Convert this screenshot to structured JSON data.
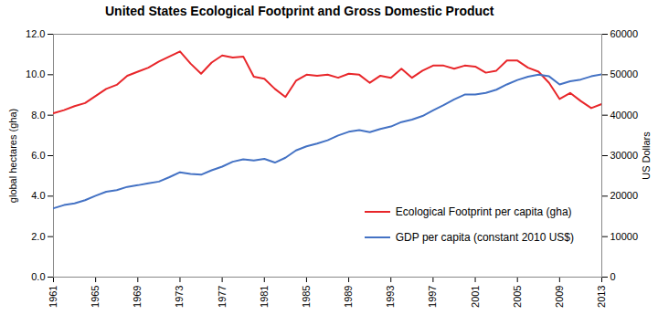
{
  "chart_data": {
    "type": "line",
    "title": "United States Ecological Footprint and Gross Domestic Product",
    "x": [
      1961,
      1962,
      1963,
      1964,
      1965,
      1966,
      1967,
      1968,
      1969,
      1970,
      1971,
      1972,
      1973,
      1974,
      1975,
      1976,
      1977,
      1978,
      1979,
      1980,
      1981,
      1982,
      1983,
      1984,
      1985,
      1986,
      1987,
      1988,
      1989,
      1990,
      1991,
      1992,
      1993,
      1994,
      1995,
      1996,
      1997,
      1998,
      1999,
      2000,
      2001,
      2002,
      2003,
      2004,
      2005,
      2006,
      2007,
      2008,
      2009,
      2010,
      2011,
      2012,
      2013
    ],
    "xlim": [
      1961,
      2013
    ],
    "xticks": [
      1961,
      1965,
      1969,
      1973,
      1977,
      1981,
      1985,
      1989,
      1993,
      1997,
      2001,
      2005,
      2009,
      2013
    ],
    "y_label": "global hectares (gha)",
    "ylim": [
      0,
      12
    ],
    "yticks": [
      {
        "value": 0,
        "label": "0.0"
      },
      {
        "value": 2,
        "label": "2.0"
      },
      {
        "value": 4,
        "label": "4.0"
      },
      {
        "value": 6,
        "label": "6.0"
      },
      {
        "value": 8,
        "label": "8.0"
      },
      {
        "value": 10,
        "label": "10.0"
      },
      {
        "value": 12,
        "label": "12.0"
      }
    ],
    "y2_label": "US Dollars",
    "y2lim": [
      0,
      60000
    ],
    "y2ticks": [
      0,
      10000,
      20000,
      30000,
      40000,
      50000,
      60000
    ],
    "legend": "lower right",
    "grid": false,
    "series": [
      {
        "name": "Ecological Footprint per capita (gha)",
        "color": "#e8262a",
        "axis": "y",
        "values": [
          8.1,
          8.25,
          8.45,
          8.6,
          8.95,
          9.3,
          9.5,
          9.95,
          10.15,
          10.35,
          10.65,
          10.9,
          11.15,
          10.55,
          10.05,
          10.6,
          10.95,
          10.85,
          10.9,
          9.9,
          9.8,
          9.3,
          8.9,
          9.7,
          10.0,
          9.95,
          10.0,
          9.85,
          10.05,
          10.0,
          9.6,
          9.95,
          9.85,
          10.3,
          9.85,
          10.2,
          10.45,
          10.45,
          10.3,
          10.45,
          10.4,
          10.1,
          10.2,
          10.7,
          10.7,
          10.35,
          10.15,
          9.6,
          8.8,
          9.1,
          8.7,
          8.35,
          8.55
        ]
      },
      {
        "name": "GDP per capita (constant 2010 US$)",
        "color": "#4472c4",
        "axis": "y2",
        "values": [
          17000,
          17800,
          18200,
          19000,
          20100,
          21100,
          21500,
          22300,
          22700,
          23200,
          23600,
          24700,
          25900,
          25500,
          25300,
          26400,
          27300,
          28500,
          29100,
          28800,
          29200,
          28300,
          29500,
          31300,
          32300,
          33000,
          33800,
          35000,
          35900,
          36300,
          35800,
          36600,
          37200,
          38300,
          38900,
          39800,
          41200,
          42500,
          43900,
          45100,
          45100,
          45500,
          46300,
          47600,
          48700,
          49500,
          50000,
          49600,
          47600,
          48400,
          48800,
          49600,
          50100
        ]
      }
    ]
  }
}
